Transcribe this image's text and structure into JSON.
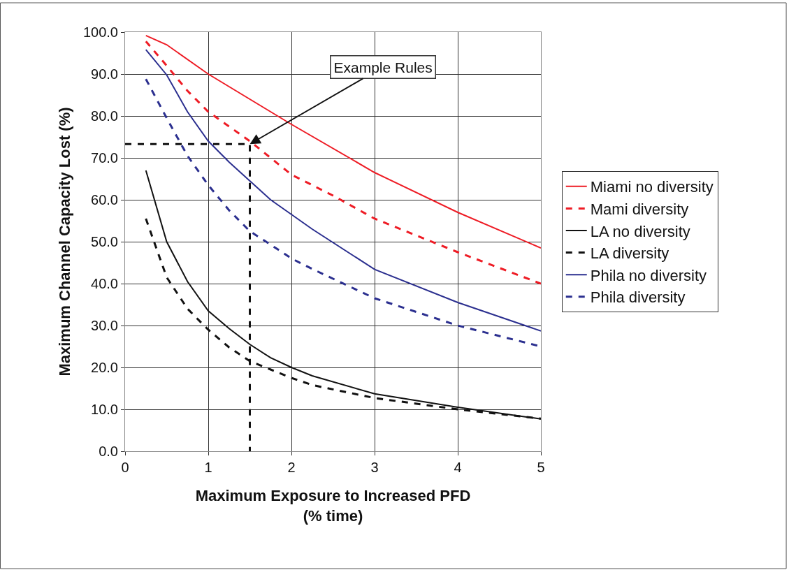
{
  "chart_data": {
    "type": "line",
    "xlabel": "Maximum Exposure to Increased PFD\n(% time)",
    "ylabel": "Maximum Channel Capacity Lost (%)",
    "x": [
      0.25,
      0.5,
      0.75,
      1,
      1.25,
      1.5,
      1.75,
      2,
      2.25,
      3,
      4,
      5
    ],
    "series": [
      {
        "name": "Miami no diversity",
        "color": "#ee1c25",
        "line_style": "solid",
        "x": [
          0.25,
          0.5,
          1,
          2,
          3,
          4,
          5
        ],
        "values": [
          99.2,
          97,
          90,
          78,
          66.5,
          57,
          48.5
        ]
      },
      {
        "name": "Mami diversity",
        "color": "#ee1c25",
        "line_style": "dashed",
        "x": [
          0.25,
          0.5,
          0.75,
          1,
          1.5,
          2,
          2.5,
          3,
          4,
          5
        ],
        "values": [
          97.8,
          92,
          86,
          81,
          74,
          66,
          61,
          55.5,
          47.5,
          40
        ]
      },
      {
        "name": "LA no diversity",
        "color": "#111111",
        "line_style": "solid",
        "values": [
          67,
          50,
          40.5,
          33.5,
          29.3,
          25.5,
          22.3,
          20,
          18,
          13.7,
          10.5,
          7.7
        ]
      },
      {
        "name": "LA diversity",
        "color": "#111111",
        "line_style": "dashed",
        "values": [
          55.5,
          41.5,
          34,
          29,
          24.8,
          21.5,
          19.5,
          17.5,
          15.8,
          12.7,
          10,
          7.8
        ]
      },
      {
        "name": "Phila no diversity",
        "color": "#2b2f8f",
        "line_style": "solid",
        "values": [
          95.8,
          89.8,
          81,
          74,
          69,
          64.5,
          60,
          56.5,
          53,
          43.4,
          35.5,
          28.7
        ]
      },
      {
        "name": "Phila diversity",
        "color": "#2b2f8f",
        "line_style": "dashed",
        "values": [
          88.8,
          79.5,
          70.5,
          63.5,
          57.5,
          52.5,
          49.3,
          46,
          43.5,
          36.5,
          30,
          25
        ]
      },
      {
        "color": "#111111",
        "line_style": "dashed",
        "x": [
          0,
          1.5,
          1.5
        ],
        "values": [
          73.3,
          73.3,
          0
        ]
      }
    ],
    "annotations": [
      {
        "text": "Example Rules",
        "x": 1.5,
        "y": 73.3
      }
    ],
    "xlim": [
      0,
      5
    ],
    "xticks": [
      0,
      1,
      2,
      3,
      4,
      5
    ],
    "ylim": [
      0,
      100
    ],
    "yticks": [
      {
        "value": 0,
        "label": "0.0"
      },
      {
        "value": 10,
        "label": "10.0"
      },
      {
        "value": 20,
        "label": "20.0"
      },
      {
        "value": 30,
        "label": "30.0"
      },
      {
        "value": 40,
        "label": "40.0"
      },
      {
        "value": 50,
        "label": "50.0"
      },
      {
        "value": 60,
        "label": "60.0"
      },
      {
        "value": 70,
        "label": "70.0"
      },
      {
        "value": 80,
        "label": "80.0"
      },
      {
        "value": 90,
        "label": "90.0"
      },
      {
        "value": 100,
        "label": "100.0"
      }
    ],
    "grid": true,
    "legend": "right",
    "marker": "none"
  }
}
